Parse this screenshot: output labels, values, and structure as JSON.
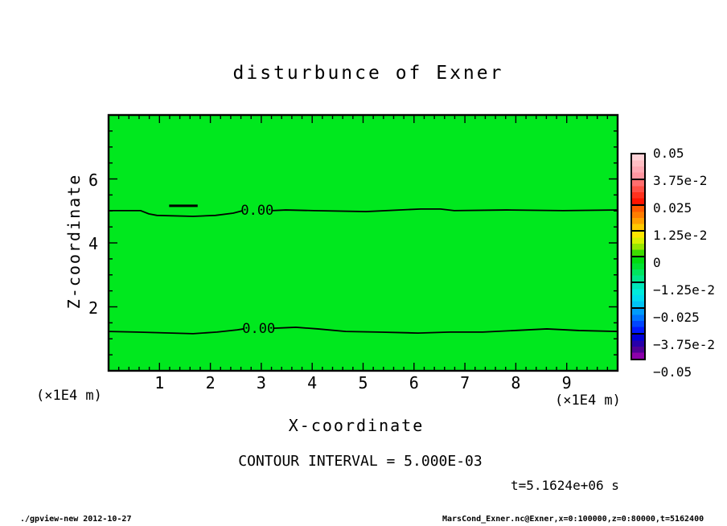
{
  "title": "disturbunce of Exner",
  "plot": {
    "fill_color": "#00e81e",
    "line_color": "#000000"
  },
  "axes": {
    "x": {
      "label": "X-coordinate",
      "unit": "(×1E4 m)",
      "tick_labels": [
        "1",
        "2",
        "3",
        "4",
        "5",
        "6",
        "7",
        "8",
        "9"
      ],
      "tick_values": [
        1,
        2,
        3,
        4,
        5,
        6,
        7,
        8,
        9
      ],
      "minor_step": 0.2
    },
    "y": {
      "label": "Z-coordinate",
      "unit": "(×1E4 m)",
      "tick_labels": [
        "2",
        "4",
        "6"
      ],
      "tick_values": [
        2,
        4,
        6
      ],
      "minor_step": 0.5
    }
  },
  "annotations": {
    "contour_interval": "CONTOUR INTERVAL = 5.000E-03",
    "time": "t=5.1624e+06 s"
  },
  "footer": {
    "left": "./gpview-new  2012-10-27",
    "right": "MarsCond_Exner.nc@Exner,x=0:100000,z=0:80000,t=5162400"
  },
  "chart_data": {
    "type": "heatmap",
    "subtype": "filled-contour-with-line-contours",
    "title": "disturbunce of Exner",
    "xlabel": "X-coordinate",
    "ylabel": "Z-coordinate",
    "x_unit_note": "(×1E4 m)",
    "y_unit_note": "(×1E4 m)",
    "xlim": [
      0,
      10
    ],
    "ylim": [
      0,
      8
    ],
    "x_ticks": [
      1,
      2,
      3,
      4,
      5,
      6,
      7,
      8,
      9
    ],
    "y_ticks": [
      2,
      4,
      6
    ],
    "grid": false,
    "contour_interval": 0.005,
    "field_description": "disturbance of Exner function is ~0 everywhere; whole field rendered in the single green color band containing 0",
    "contours": [
      {
        "level": 0.0,
        "label": "0.00",
        "label_pos": [
          2.92,
          5.01
        ],
        "segments": [
          [
            [
              0,
              5.01
            ],
            [
              0.63,
              5.01
            ],
            [
              0.79,
              4.91
            ],
            [
              0.95,
              4.86
            ],
            [
              1.66,
              4.83
            ],
            [
              2.1,
              4.86
            ],
            [
              2.45,
              4.93
            ],
            [
              2.64,
              5.01
            ]
          ],
          [
            [
              3.21,
              5.01
            ],
            [
              3.48,
              5.03
            ],
            [
              4.03,
              5.01
            ],
            [
              5.06,
              4.98
            ],
            [
              6.13,
              5.06
            ],
            [
              6.52,
              5.06
            ],
            [
              6.79,
              5.01
            ],
            [
              7.82,
              5.03
            ],
            [
              8.93,
              5.01
            ],
            [
              10,
              5.03
            ]
          ]
        ]
      },
      {
        "level": 0.0,
        "label": "0.00",
        "label_pos": [
          2.95,
          1.31
        ],
        "segments": [
          [
            [
              0,
              1.23
            ],
            [
              0.55,
              1.21
            ],
            [
              1.66,
              1.16
            ],
            [
              2.13,
              1.21
            ],
            [
              2.53,
              1.28
            ],
            [
              2.65,
              1.31
            ]
          ],
          [
            [
              3.24,
              1.33
            ],
            [
              3.68,
              1.36
            ],
            [
              4.11,
              1.31
            ],
            [
              4.66,
              1.23
            ],
            [
              5.29,
              1.21
            ],
            [
              6.08,
              1.18
            ],
            [
              6.71,
              1.21
            ],
            [
              7.35,
              1.21
            ],
            [
              7.98,
              1.26
            ],
            [
              8.61,
              1.31
            ],
            [
              9.24,
              1.26
            ],
            [
              10,
              1.23
            ]
          ]
        ]
      }
    ],
    "extra_contour_dash": {
      "points": [
        [
          1.19,
          5.16
        ],
        [
          1.75,
          5.16
        ]
      ],
      "note": "short isolated 0-level segment"
    },
    "colorbar": {
      "position": "right",
      "tick_values": [
        0.05,
        0.0375,
        0.025,
        0.0125,
        0,
        -0.0125,
        -0.025,
        -0.0375,
        -0.05
      ],
      "tick_labels": [
        "0.05",
        "3.75e-2",
        "0.025",
        "1.25e-2",
        "0",
        "−1.25e-2",
        "−0.025",
        "−3.75e-2",
        "−0.05"
      ],
      "segment_colors": [
        [
          "#ffd2d7",
          "#ffbec3",
          "#ffaab4",
          "#ff96a0"
        ],
        [
          "#ff6e6e",
          "#ff5046",
          "#ff321e",
          "#ff1400"
        ],
        [
          "#ff5a00",
          "#ff7d00",
          "#ffa000",
          "#ffc800"
        ],
        [
          "#ffe600",
          "#d7f000",
          "#96e600",
          "#3cdc00"
        ],
        [
          "#00dc0f",
          "#00e132",
          "#00e65f",
          "#00e68c"
        ],
        [
          "#00e6b9",
          "#00ebdc",
          "#00dcf0",
          "#00c3f5"
        ],
        [
          "#009bfa",
          "#0073ff",
          "#0046ff",
          "#0019ff"
        ],
        [
          "#0000d7",
          "#2800aa",
          "#500096",
          "#8c00aa"
        ]
      ]
    },
    "time_annotation": "t=5.1624e+06 s"
  }
}
